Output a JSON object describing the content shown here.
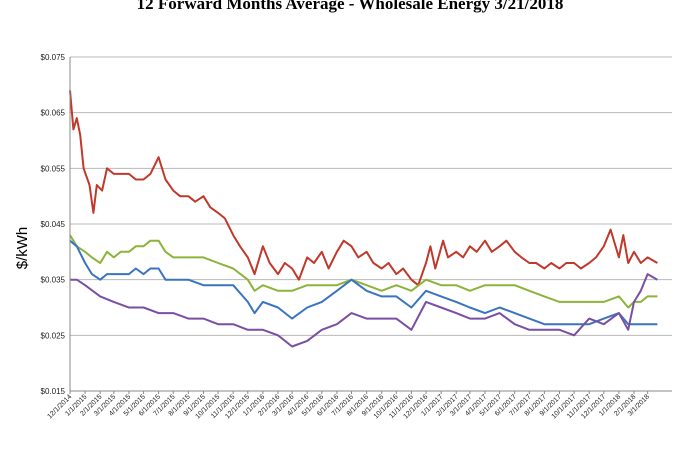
{
  "chart_data": {
    "type": "line",
    "title": "12 Forward Months Average - Wholesale Energy 3/21/2018",
    "xlabel": "",
    "ylabel": "$/kWh",
    "ylim": [
      0.015,
      0.075
    ],
    "yticks": [
      0.015,
      0.025,
      0.035,
      0.045,
      0.055,
      0.065,
      0.075
    ],
    "ytick_labels": [
      "$0.015",
      "$0.025",
      "$0.035",
      "$0.045",
      "$0.055",
      "$0.065",
      "$0.075"
    ],
    "xlim": [
      "2014-12-01",
      "2018-04-20"
    ],
    "xtick_labels": [
      "12/1/2014",
      "1/1/2015",
      "2/1/2015",
      "3/1/2015",
      "4/1/2015",
      "5/1/2015",
      "6/1/2015",
      "7/1/2015",
      "8/1/2015",
      "9/1/2015",
      "10/1/2015",
      "11/1/2015",
      "12/1/2015",
      "1/1/2016",
      "2/1/2016",
      "3/1/2016",
      "4/1/2016",
      "5/1/2016",
      "6/1/2016",
      "7/1/2016",
      "8/1/2016",
      "9/1/2016",
      "10/1/2016",
      "11/1/2016",
      "12/1/2016",
      "1/1/2017",
      "2/1/2017",
      "3/1/2017",
      "4/1/2017",
      "5/1/2017",
      "6/1/2017",
      "7/1/2017",
      "8/1/2017",
      "9/1/2017",
      "10/1/2017",
      "11/1/2017",
      "12/1/2017",
      "1/1/2018",
      "2/1/2018",
      "3/1/2018"
    ],
    "grid": "horizontal",
    "legend": "none",
    "series": [
      {
        "color": "#c0392b",
        "points": [
          [
            "2014-12-01",
            0.069
          ],
          [
            "2014-12-08",
            0.062
          ],
          [
            "2014-12-15",
            0.064
          ],
          [
            "2014-12-22",
            0.061
          ],
          [
            "2014-12-29",
            0.055
          ],
          [
            "2015-01-10",
            0.052
          ],
          [
            "2015-01-18",
            0.047
          ],
          [
            "2015-01-25",
            0.052
          ],
          [
            "2015-02-05",
            0.051
          ],
          [
            "2015-02-15",
            0.055
          ],
          [
            "2015-03-01",
            0.054
          ],
          [
            "2015-03-15",
            0.054
          ],
          [
            "2015-04-01",
            0.054
          ],
          [
            "2015-04-15",
            0.053
          ],
          [
            "2015-05-01",
            0.053
          ],
          [
            "2015-05-15",
            0.054
          ],
          [
            "2015-06-01",
            0.057
          ],
          [
            "2015-06-15",
            0.053
          ],
          [
            "2015-07-01",
            0.051
          ],
          [
            "2015-07-15",
            0.05
          ],
          [
            "2015-08-01",
            0.05
          ],
          [
            "2015-08-15",
            0.049
          ],
          [
            "2015-09-01",
            0.05
          ],
          [
            "2015-09-15",
            0.048
          ],
          [
            "2015-10-01",
            0.047
          ],
          [
            "2015-10-15",
            0.046
          ],
          [
            "2015-11-01",
            0.043
          ],
          [
            "2015-11-15",
            0.041
          ],
          [
            "2015-12-01",
            0.039
          ],
          [
            "2015-12-15",
            0.036
          ],
          [
            "2016-01-01",
            0.041
          ],
          [
            "2016-01-15",
            0.038
          ],
          [
            "2016-02-01",
            0.036
          ],
          [
            "2016-02-15",
            0.038
          ],
          [
            "2016-03-01",
            0.037
          ],
          [
            "2016-03-15",
            0.035
          ],
          [
            "2016-04-01",
            0.039
          ],
          [
            "2016-04-15",
            0.038
          ],
          [
            "2016-05-01",
            0.04
          ],
          [
            "2016-05-15",
            0.037
          ],
          [
            "2016-06-01",
            0.04
          ],
          [
            "2016-06-15",
            0.042
          ],
          [
            "2016-07-01",
            0.041
          ],
          [
            "2016-07-15",
            0.039
          ],
          [
            "2016-08-01",
            0.04
          ],
          [
            "2016-08-15",
            0.038
          ],
          [
            "2016-09-01",
            0.037
          ],
          [
            "2016-09-15",
            0.038
          ],
          [
            "2016-10-01",
            0.036
          ],
          [
            "2016-10-15",
            0.037
          ],
          [
            "2016-11-01",
            0.035
          ],
          [
            "2016-11-15",
            0.034
          ],
          [
            "2016-12-01",
            0.038
          ],
          [
            "2016-12-10",
            0.041
          ],
          [
            "2016-12-20",
            0.037
          ],
          [
            "2017-01-05",
            0.042
          ],
          [
            "2017-01-15",
            0.039
          ],
          [
            "2017-02-01",
            0.04
          ],
          [
            "2017-02-15",
            0.039
          ],
          [
            "2017-03-01",
            0.041
          ],
          [
            "2017-03-15",
            0.04
          ],
          [
            "2017-04-01",
            0.042
          ],
          [
            "2017-04-15",
            0.04
          ],
          [
            "2017-05-01",
            0.041
          ],
          [
            "2017-05-15",
            0.042
          ],
          [
            "2017-06-01",
            0.04
          ],
          [
            "2017-06-15",
            0.039
          ],
          [
            "2017-07-01",
            0.038
          ],
          [
            "2017-07-15",
            0.038
          ],
          [
            "2017-08-01",
            0.037
          ],
          [
            "2017-08-15",
            0.038
          ],
          [
            "2017-09-01",
            0.037
          ],
          [
            "2017-09-15",
            0.038
          ],
          [
            "2017-10-01",
            0.038
          ],
          [
            "2017-10-15",
            0.037
          ],
          [
            "2017-11-01",
            0.038
          ],
          [
            "2017-11-15",
            0.039
          ],
          [
            "2017-12-01",
            0.041
          ],
          [
            "2017-12-15",
            0.044
          ],
          [
            "2018-01-01",
            0.039
          ],
          [
            "2018-01-10",
            0.043
          ],
          [
            "2018-01-20",
            0.038
          ],
          [
            "2018-02-01",
            0.04
          ],
          [
            "2018-02-15",
            0.038
          ],
          [
            "2018-03-01",
            0.039
          ],
          [
            "2018-03-21",
            0.038
          ]
        ]
      },
      {
        "color": "#8db33a",
        "points": [
          [
            "2014-12-01",
            0.043
          ],
          [
            "2014-12-15",
            0.041
          ],
          [
            "2015-01-01",
            0.04
          ],
          [
            "2015-01-15",
            0.039
          ],
          [
            "2015-02-01",
            0.038
          ],
          [
            "2015-02-15",
            0.04
          ],
          [
            "2015-03-01",
            0.039
          ],
          [
            "2015-03-15",
            0.04
          ],
          [
            "2015-04-01",
            0.04
          ],
          [
            "2015-04-15",
            0.041
          ],
          [
            "2015-05-01",
            0.041
          ],
          [
            "2015-05-15",
            0.042
          ],
          [
            "2015-06-01",
            0.042
          ],
          [
            "2015-06-15",
            0.04
          ],
          [
            "2015-07-01",
            0.039
          ],
          [
            "2015-08-01",
            0.039
          ],
          [
            "2015-09-01",
            0.039
          ],
          [
            "2015-10-01",
            0.038
          ],
          [
            "2015-11-01",
            0.037
          ],
          [
            "2015-12-01",
            0.035
          ],
          [
            "2015-12-15",
            0.033
          ],
          [
            "2016-01-01",
            0.034
          ],
          [
            "2016-02-01",
            0.033
          ],
          [
            "2016-03-01",
            0.033
          ],
          [
            "2016-04-01",
            0.034
          ],
          [
            "2016-05-01",
            0.034
          ],
          [
            "2016-06-01",
            0.034
          ],
          [
            "2016-07-01",
            0.035
          ],
          [
            "2016-08-01",
            0.034
          ],
          [
            "2016-09-01",
            0.033
          ],
          [
            "2016-10-01",
            0.034
          ],
          [
            "2016-11-01",
            0.033
          ],
          [
            "2016-12-01",
            0.035
          ],
          [
            "2017-01-01",
            0.034
          ],
          [
            "2017-02-01",
            0.034
          ],
          [
            "2017-03-01",
            0.033
          ],
          [
            "2017-04-01",
            0.034
          ],
          [
            "2017-05-01",
            0.034
          ],
          [
            "2017-06-01",
            0.034
          ],
          [
            "2017-07-01",
            0.033
          ],
          [
            "2017-08-01",
            0.032
          ],
          [
            "2017-09-01",
            0.031
          ],
          [
            "2017-10-01",
            0.031
          ],
          [
            "2017-11-01",
            0.031
          ],
          [
            "2017-12-01",
            0.031
          ],
          [
            "2018-01-01",
            0.032
          ],
          [
            "2018-01-20",
            0.03
          ],
          [
            "2018-02-01",
            0.031
          ],
          [
            "2018-02-15",
            0.031
          ],
          [
            "2018-03-01",
            0.032
          ],
          [
            "2018-03-21",
            0.032
          ]
        ]
      },
      {
        "color": "#3a74c1",
        "points": [
          [
            "2014-12-01",
            0.042
          ],
          [
            "2014-12-15",
            0.041
          ],
          [
            "2015-01-01",
            0.038
          ],
          [
            "2015-01-15",
            0.036
          ],
          [
            "2015-02-01",
            0.035
          ],
          [
            "2015-02-15",
            0.036
          ],
          [
            "2015-03-01",
            0.036
          ],
          [
            "2015-03-15",
            0.036
          ],
          [
            "2015-04-01",
            0.036
          ],
          [
            "2015-04-15",
            0.037
          ],
          [
            "2015-05-01",
            0.036
          ],
          [
            "2015-05-15",
            0.037
          ],
          [
            "2015-06-01",
            0.037
          ],
          [
            "2015-06-15",
            0.035
          ],
          [
            "2015-07-01",
            0.035
          ],
          [
            "2015-08-01",
            0.035
          ],
          [
            "2015-09-01",
            0.034
          ],
          [
            "2015-10-01",
            0.034
          ],
          [
            "2015-11-01",
            0.034
          ],
          [
            "2015-12-01",
            0.031
          ],
          [
            "2015-12-15",
            0.029
          ],
          [
            "2016-01-01",
            0.031
          ],
          [
            "2016-02-01",
            0.03
          ],
          [
            "2016-03-01",
            0.028
          ],
          [
            "2016-04-01",
            0.03
          ],
          [
            "2016-05-01",
            0.031
          ],
          [
            "2016-06-01",
            0.033
          ],
          [
            "2016-07-01",
            0.035
          ],
          [
            "2016-08-01",
            0.033
          ],
          [
            "2016-09-01",
            0.032
          ],
          [
            "2016-10-01",
            0.032
          ],
          [
            "2016-11-01",
            0.03
          ],
          [
            "2016-12-01",
            0.033
          ],
          [
            "2017-01-01",
            0.032
          ],
          [
            "2017-02-01",
            0.031
          ],
          [
            "2017-03-01",
            0.03
          ],
          [
            "2017-04-01",
            0.029
          ],
          [
            "2017-05-01",
            0.03
          ],
          [
            "2017-06-01",
            0.029
          ],
          [
            "2017-07-01",
            0.028
          ],
          [
            "2017-08-01",
            0.027
          ],
          [
            "2017-09-01",
            0.027
          ],
          [
            "2017-10-01",
            0.027
          ],
          [
            "2017-11-01",
            0.027
          ],
          [
            "2017-12-01",
            0.028
          ],
          [
            "2018-01-01",
            0.029
          ],
          [
            "2018-01-20",
            0.027
          ],
          [
            "2018-02-01",
            0.027
          ],
          [
            "2018-02-15",
            0.027
          ],
          [
            "2018-03-01",
            0.027
          ],
          [
            "2018-03-21",
            0.027
          ]
        ]
      },
      {
        "color": "#7a4fa3",
        "points": [
          [
            "2014-12-01",
            0.035
          ],
          [
            "2014-12-15",
            0.035
          ],
          [
            "2015-01-01",
            0.034
          ],
          [
            "2015-02-01",
            0.032
          ],
          [
            "2015-03-01",
            0.031
          ],
          [
            "2015-04-01",
            0.03
          ],
          [
            "2015-05-01",
            0.03
          ],
          [
            "2015-06-01",
            0.029
          ],
          [
            "2015-07-01",
            0.029
          ],
          [
            "2015-08-01",
            0.028
          ],
          [
            "2015-09-01",
            0.028
          ],
          [
            "2015-10-01",
            0.027
          ],
          [
            "2015-11-01",
            0.027
          ],
          [
            "2015-12-01",
            0.026
          ],
          [
            "2016-01-01",
            0.026
          ],
          [
            "2016-02-01",
            0.025
          ],
          [
            "2016-03-01",
            0.023
          ],
          [
            "2016-04-01",
            0.024
          ],
          [
            "2016-05-01",
            0.026
          ],
          [
            "2016-06-01",
            0.027
          ],
          [
            "2016-07-01",
            0.029
          ],
          [
            "2016-08-01",
            0.028
          ],
          [
            "2016-09-01",
            0.028
          ],
          [
            "2016-10-01",
            0.028
          ],
          [
            "2016-11-01",
            0.026
          ],
          [
            "2016-12-01",
            0.031
          ],
          [
            "2017-01-01",
            0.03
          ],
          [
            "2017-02-01",
            0.029
          ],
          [
            "2017-03-01",
            0.028
          ],
          [
            "2017-04-01",
            0.028
          ],
          [
            "2017-05-01",
            0.029
          ],
          [
            "2017-06-01",
            0.027
          ],
          [
            "2017-07-01",
            0.026
          ],
          [
            "2017-08-01",
            0.026
          ],
          [
            "2017-09-01",
            0.026
          ],
          [
            "2017-10-01",
            0.025
          ],
          [
            "2017-11-01",
            0.028
          ],
          [
            "2017-12-01",
            0.027
          ],
          [
            "2018-01-01",
            0.029
          ],
          [
            "2018-01-20",
            0.026
          ],
          [
            "2018-02-01",
            0.031
          ],
          [
            "2018-02-15",
            0.033
          ],
          [
            "2018-03-01",
            0.036
          ],
          [
            "2018-03-21",
            0.035
          ]
        ]
      }
    ]
  }
}
